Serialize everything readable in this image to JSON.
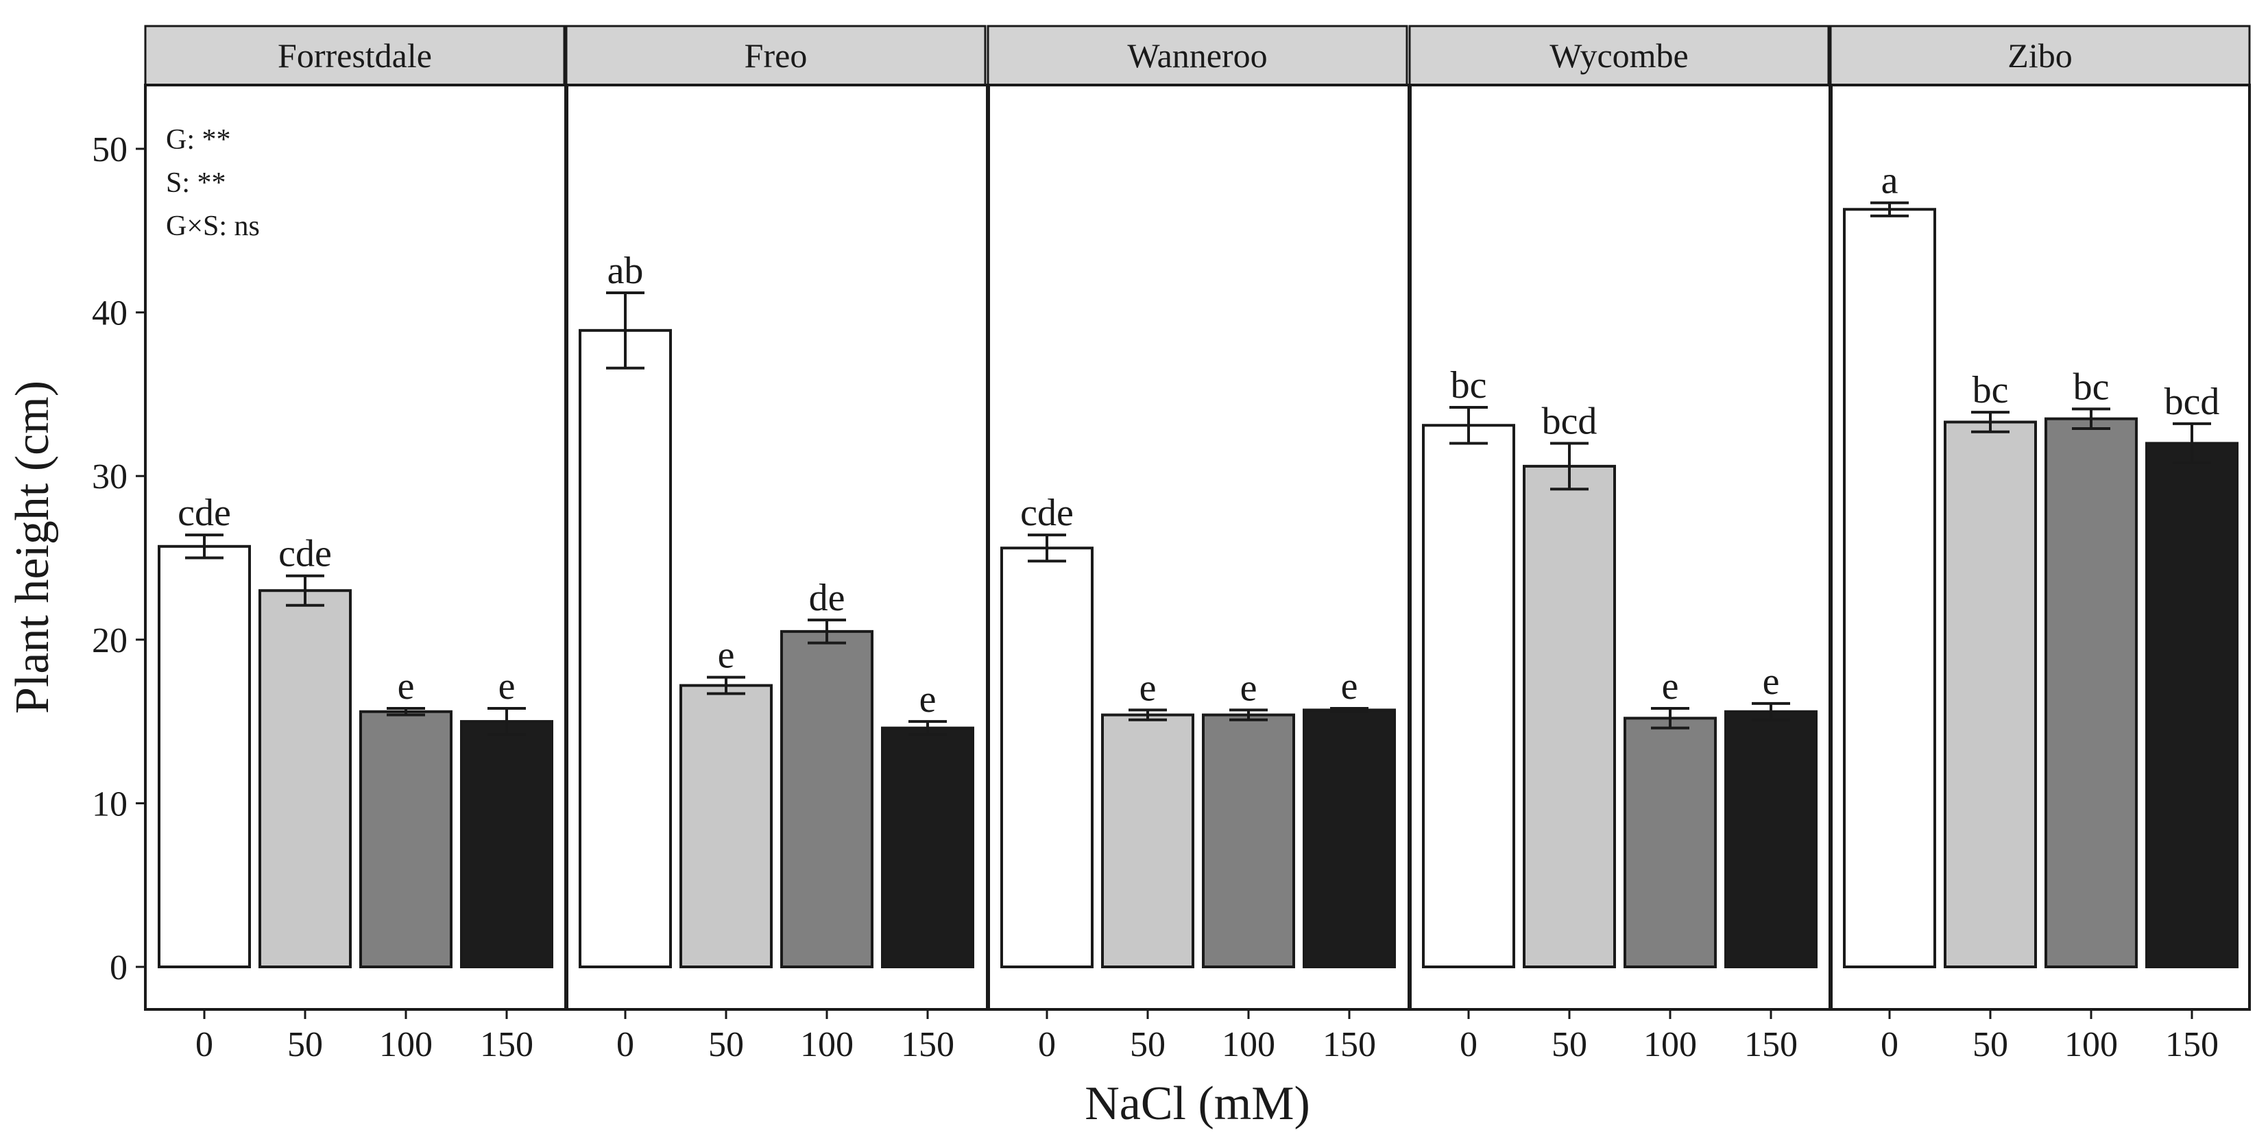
{
  "chart_data": {
    "type": "bar",
    "xlabel": "NaCl (mM)",
    "ylabel": "Plant height (cm)",
    "ylim": [
      0,
      54
    ],
    "yticks": [
      0,
      10,
      20,
      30,
      40,
      50
    ],
    "categories": [
      "0",
      "50",
      "100",
      "150"
    ],
    "colors": [
      "#ffffff",
      "#c8c8c8",
      "#808080",
      "#1c1c1c"
    ],
    "stats": [
      "G: **",
      "S: **",
      "G×S: ns"
    ],
    "panels": [
      {
        "name": "Forrestdale",
        "values": [
          25.7,
          23.0,
          15.6,
          15.0
        ],
        "errors": [
          0.7,
          0.9,
          0.2,
          0.8
        ],
        "labels": [
          "cde",
          "cde",
          "e",
          "e"
        ]
      },
      {
        "name": "Freo",
        "values": [
          38.9,
          17.2,
          20.5,
          14.6
        ],
        "errors": [
          2.3,
          0.5,
          0.7,
          0.4
        ],
        "labels": [
          "ab",
          "e",
          "de",
          "e"
        ]
      },
      {
        "name": "Wanneroo",
        "values": [
          25.6,
          15.4,
          15.4,
          15.7
        ],
        "errors": [
          0.8,
          0.3,
          0.3,
          0.1
        ],
        "labels": [
          "cde",
          "e",
          "e",
          "e"
        ]
      },
      {
        "name": "Wycombe",
        "values": [
          33.1,
          30.6,
          15.2,
          15.6
        ],
        "errors": [
          1.1,
          1.4,
          0.6,
          0.5
        ],
        "labels": [
          "bc",
          "bcd",
          "e",
          "e"
        ]
      },
      {
        "name": "Zibo",
        "values": [
          46.3,
          33.3,
          33.5,
          32.0
        ],
        "errors": [
          0.4,
          0.6,
          0.6,
          1.2
        ],
        "labels": [
          "a",
          "bc",
          "bc",
          "bcd"
        ]
      }
    ]
  }
}
